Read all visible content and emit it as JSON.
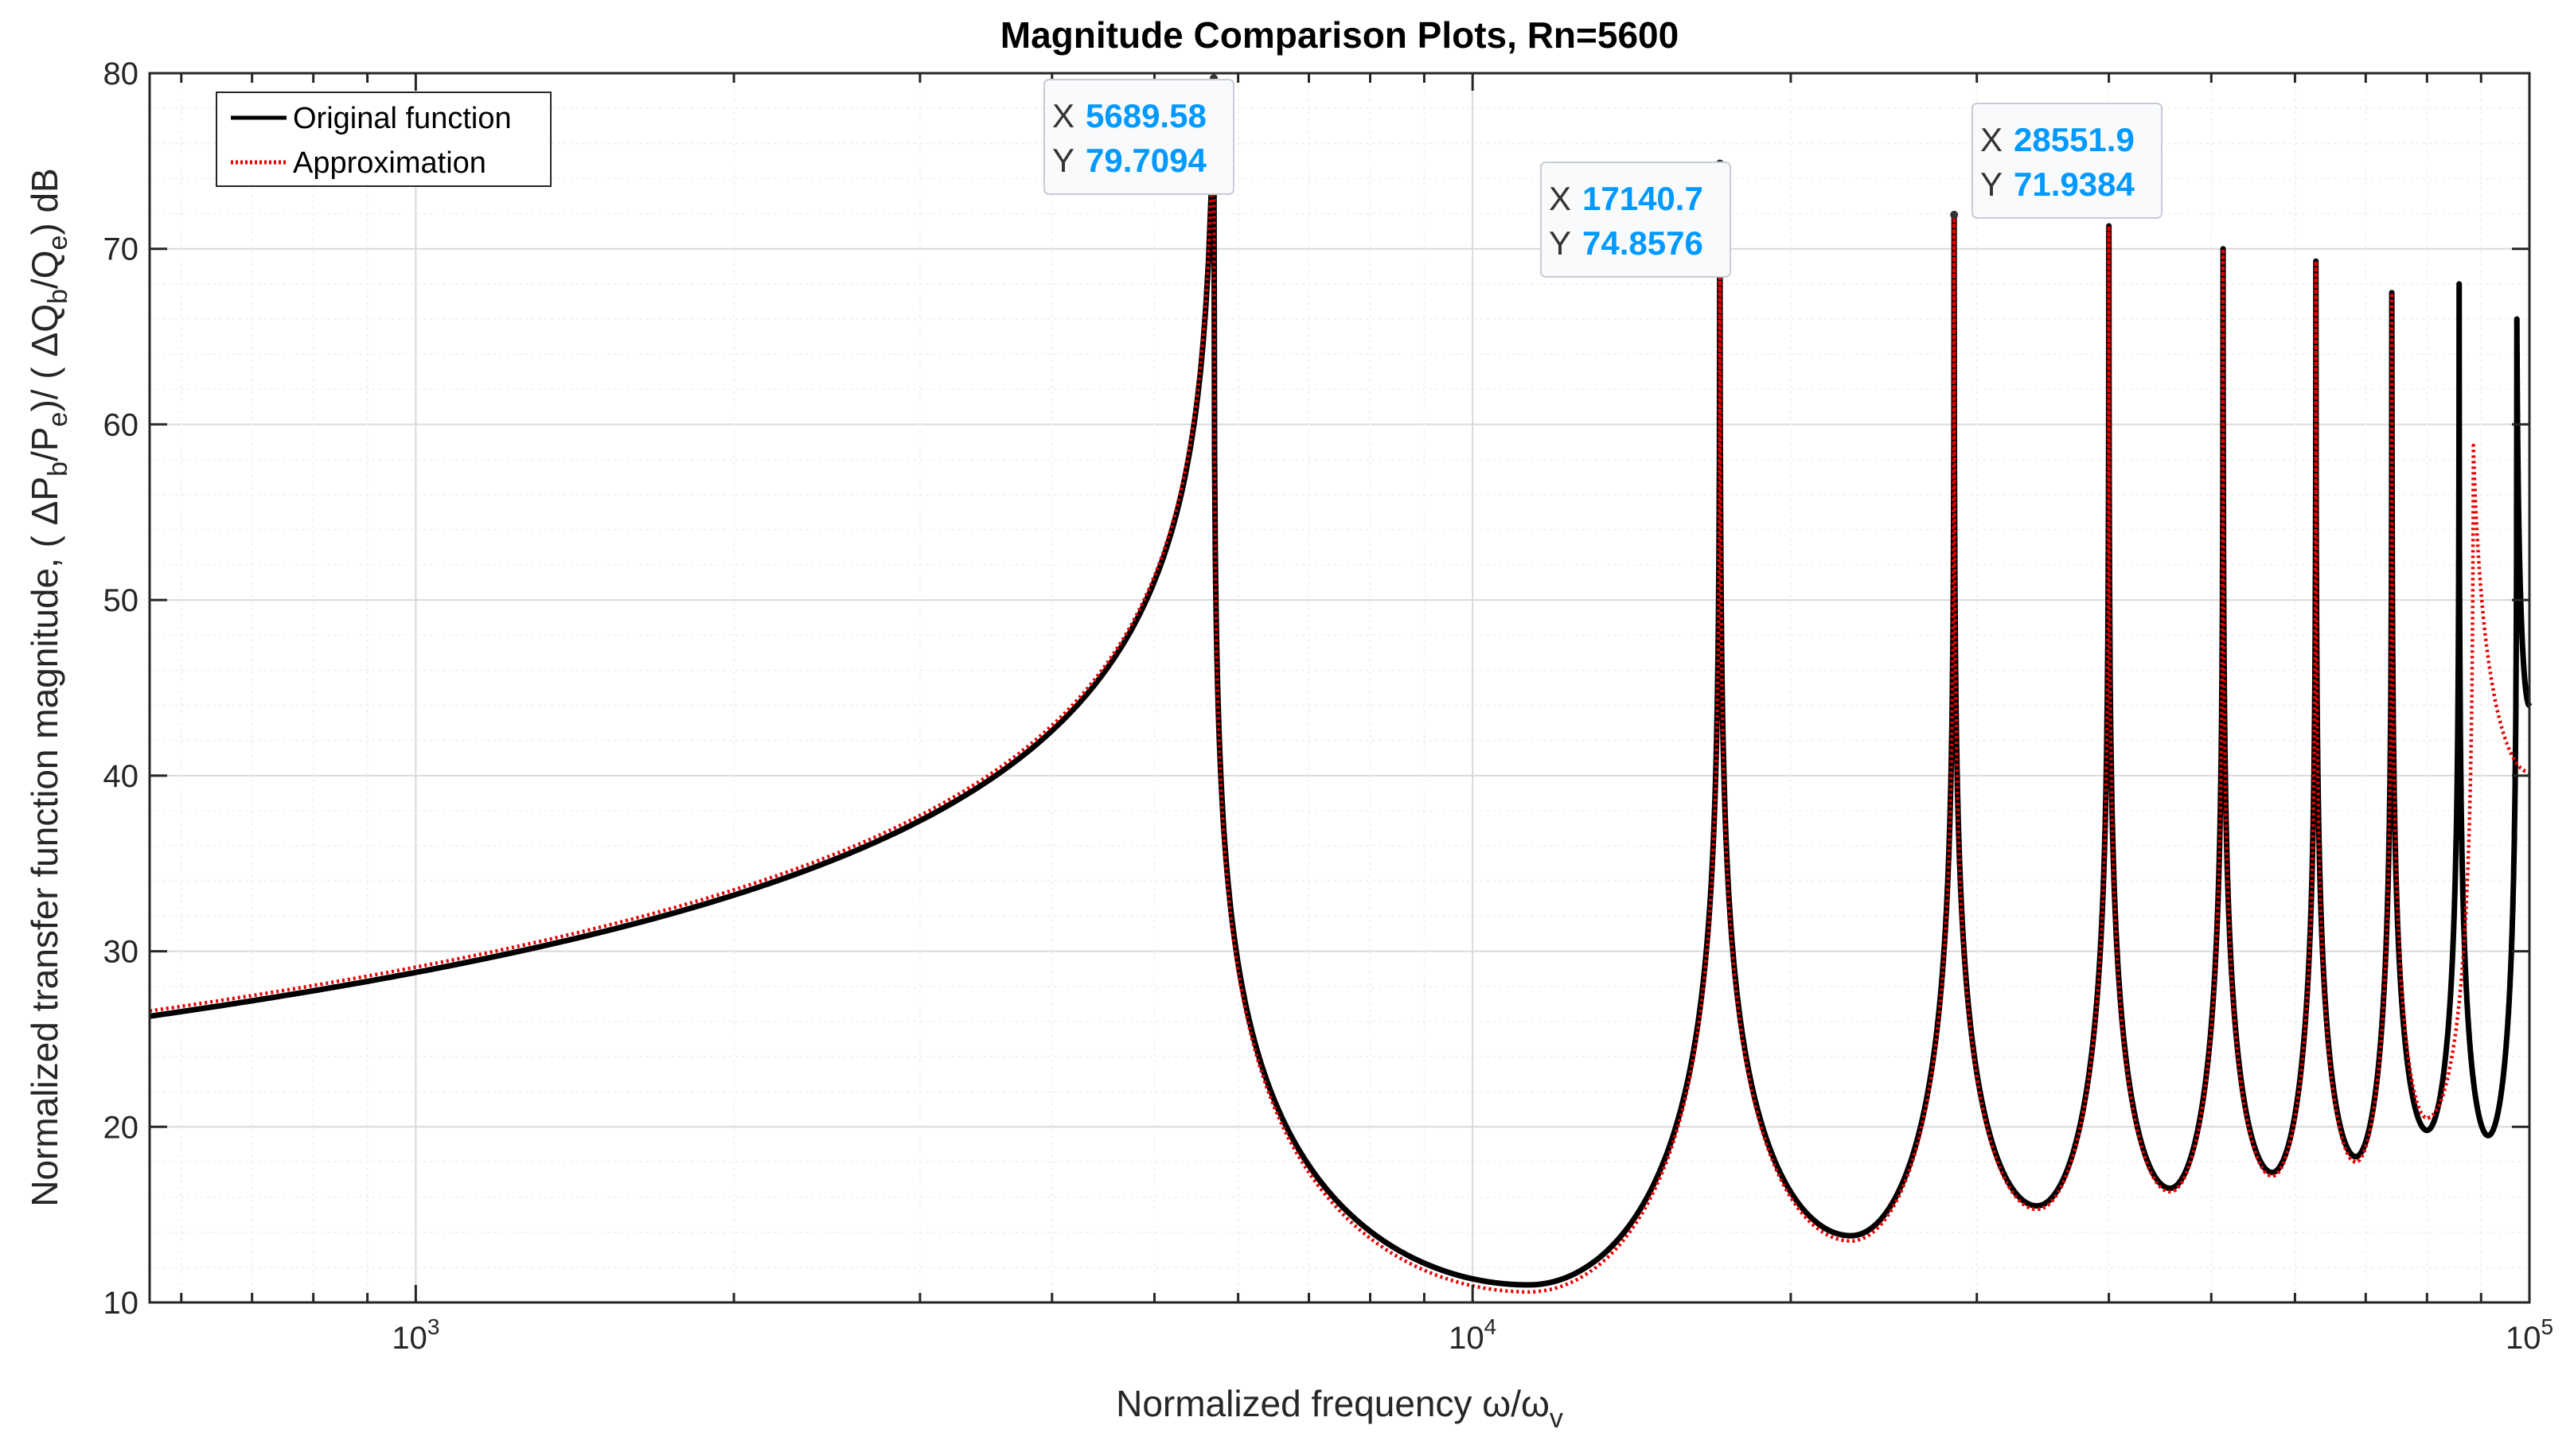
{
  "chart_data": {
    "type": "line",
    "title": "Magnitude Comparison Plots, Rn=5600",
    "xlabel": "Normalized frequency ω/ω",
    "xlabel_sub": "v",
    "ylabel_parts": [
      "Normalized transfer function magnitude,  ( ΔP",
      "b",
      "/P",
      "e",
      ")/ ( ΔQ",
      "b",
      "/Q",
      "e",
      ") dB"
    ],
    "xscale": "log",
    "xlim": [
      560,
      100000
    ],
    "ylim": [
      10,
      80
    ],
    "grid": true,
    "minor_grid": true,
    "legend_position": "top-left",
    "yticks": [
      10,
      20,
      30,
      40,
      50,
      60,
      70,
      80
    ],
    "xtick_labels": [
      {
        "value": 1000,
        "base": "10",
        "exp": "3"
      },
      {
        "value": 10000,
        "base": "10",
        "exp": "4"
      },
      {
        "value": 100000,
        "base": "10",
        "exp": "5"
      }
    ],
    "series": [
      {
        "name": "Original function",
        "color": "#000000",
        "style": "solid",
        "peaks": [
          {
            "x": 5689.58,
            "y": 79.7094
          },
          {
            "x": 17140.7,
            "y": 74.8576
          },
          {
            "x": 28551.9,
            "y": 71.9384
          },
          {
            "x": 40000,
            "y": 71.3
          },
          {
            "x": 51300,
            "y": 70.0
          },
          {
            "x": 62800,
            "y": 69.3
          },
          {
            "x": 74100,
            "y": 67.5
          },
          {
            "x": 85800,
            "y": 68.0
          },
          {
            "x": 97300,
            "y": 66.0
          }
        ],
        "troughs": [
          {
            "x": 11300,
            "y": 11.0
          },
          {
            "x": 22800,
            "y": 13.8
          },
          {
            "x": 34200,
            "y": 15.5
          },
          {
            "x": 45700,
            "y": 16.5
          },
          {
            "x": 57100,
            "y": 17.4
          },
          {
            "x": 68500,
            "y": 18.3
          },
          {
            "x": 80000,
            "y": 19.8
          },
          {
            "x": 91400,
            "y": 19.5
          }
        ],
        "start": {
          "x": 560,
          "y": 26.3
        },
        "end": {
          "x": 100000,
          "y": 44.0
        }
      },
      {
        "name": "Approximation",
        "color": "#e60000",
        "style": "dotted",
        "peaks": [
          {
            "x": 5689.58,
            "y": 79.7094
          },
          {
            "x": 17140.7,
            "y": 74.8576
          },
          {
            "x": 28551.9,
            "y": 71.9384
          },
          {
            "x": 40000,
            "y": 71.3
          },
          {
            "x": 51300,
            "y": 70.0
          },
          {
            "x": 62800,
            "y": 69.3
          },
          {
            "x": 74100,
            "y": 67.5
          },
          {
            "x": 88500,
            "y": 58.8
          }
        ],
        "troughs": [
          {
            "x": 11300,
            "y": 10.6
          },
          {
            "x": 22800,
            "y": 13.5
          },
          {
            "x": 34200,
            "y": 15.3
          },
          {
            "x": 45700,
            "y": 16.3
          },
          {
            "x": 57100,
            "y": 17.2
          },
          {
            "x": 68500,
            "y": 18.0
          },
          {
            "x": 80000,
            "y": 20.5
          }
        ],
        "start": {
          "x": 560,
          "y": 26.6
        },
        "end": {
          "x": 100000,
          "y": 40.2
        }
      }
    ],
    "datatips": [
      {
        "x_label": "X",
        "y_label": "Y",
        "x": "5689.58",
        "y": "79.7094",
        "anchor_x": 5689.58,
        "anchor_y": 79.7094
      },
      {
        "x_label": "X",
        "y_label": "Y",
        "x": "17140.7",
        "y": "74.8576",
        "anchor_x": 17140.7,
        "anchor_y": 74.8576
      },
      {
        "x_label": "X",
        "y_label": "Y",
        "x": "28551.9",
        "y": "71.9384",
        "anchor_x": 28551.9,
        "anchor_y": 71.9384
      }
    ]
  }
}
